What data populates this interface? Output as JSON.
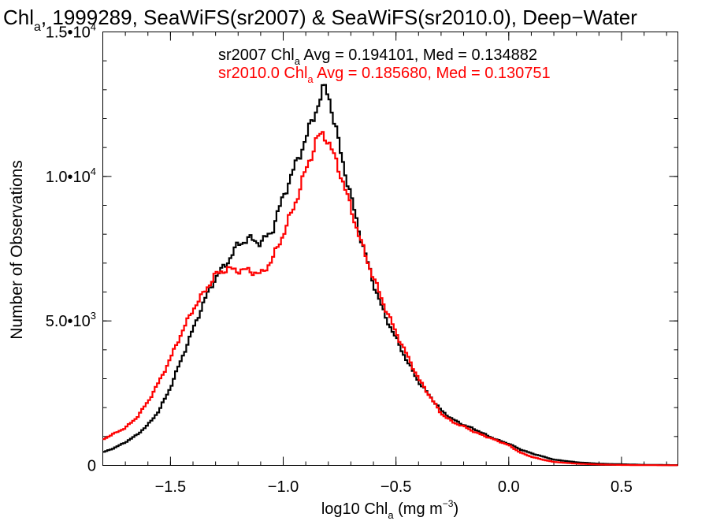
{
  "chart_data": {
    "type": "line",
    "title": {
      "main": "Chl",
      "sub": "a",
      "rest": ", 1999289, SeaWiFS(sr2007) & SeaWiFS(sr2010.0), Deep−Water"
    },
    "xlabel": {
      "main": "log10 Chl",
      "sub": "a",
      "rest": " (mg m",
      "sup": "−3",
      "close": ")"
    },
    "ylabel": "Number of Observations",
    "xlim": [
      -1.8,
      0.75
    ],
    "ylim": [
      0,
      15000
    ],
    "x_ticks": [
      {
        "v": -1.5,
        "label": "−1.5"
      },
      {
        "v": -1.0,
        "label": "−1.0"
      },
      {
        "v": -0.5,
        "label": "−0.5"
      },
      {
        "v": 0.0,
        "label": "0.0"
      },
      {
        "v": 0.5,
        "label": "0.5"
      }
    ],
    "y_ticks": [
      {
        "v": 0,
        "mant": "0",
        "exp": ""
      },
      {
        "v": 5000,
        "mant": "5.0•10",
        "exp": "3"
      },
      {
        "v": 10000,
        "mant": "1.0•10",
        "exp": "4"
      },
      {
        "v": 15000,
        "mant": "1.5•10",
        "exp": "4"
      }
    ],
    "x_minor_step": 0.1,
    "y_minor_step": 1000,
    "legend": [
      {
        "prefix": "sr2007 Chl",
        "sub": "a",
        "stats": " Avg = 0.194101, Med = 0.134882",
        "color": "#000000"
      },
      {
        "prefix": "sr2010.0 Chl",
        "sub": "a",
        "stats": " Avg = 0.185680, Med = 0.130751",
        "color": "#ff0000"
      }
    ],
    "series": [
      {
        "name": "sr2007",
        "color": "#000000",
        "x": [
          -1.8,
          -1.75,
          -1.7,
          -1.65,
          -1.6,
          -1.55,
          -1.5,
          -1.45,
          -1.4,
          -1.35,
          -1.3,
          -1.25,
          -1.2,
          -1.15,
          -1.1,
          -1.05,
          -1.0,
          -0.95,
          -0.9,
          -0.85,
          -0.82,
          -0.8,
          -0.75,
          -0.7,
          -0.65,
          -0.6,
          -0.55,
          -0.5,
          -0.45,
          -0.4,
          -0.35,
          -0.3,
          -0.25,
          -0.2,
          -0.15,
          -0.1,
          -0.05,
          0.0,
          0.05,
          0.1,
          0.15,
          0.2,
          0.3,
          0.4,
          0.5,
          0.6,
          0.75
        ],
        "y": [
          450,
          600,
          800,
          1050,
          1400,
          1900,
          2700,
          3700,
          4700,
          5700,
          6500,
          7000,
          7650,
          7850,
          7700,
          8100,
          9300,
          10300,
          11300,
          12400,
          13050,
          12900,
          11000,
          9300,
          7700,
          6300,
          5200,
          4400,
          3600,
          2900,
          2400,
          1900,
          1600,
          1400,
          1250,
          1050,
          880,
          750,
          560,
          420,
          310,
          200,
          110,
          60,
          40,
          20,
          10
        ]
      },
      {
        "name": "sr2010.0",
        "color": "#ff0000",
        "x": [
          -1.8,
          -1.75,
          -1.7,
          -1.65,
          -1.6,
          -1.55,
          -1.5,
          -1.45,
          -1.4,
          -1.35,
          -1.3,
          -1.25,
          -1.2,
          -1.15,
          -1.1,
          -1.05,
          -1.0,
          -0.95,
          -0.9,
          -0.85,
          -0.82,
          -0.8,
          -0.75,
          -0.7,
          -0.65,
          -0.6,
          -0.55,
          -0.5,
          -0.45,
          -0.4,
          -0.35,
          -0.3,
          -0.25,
          -0.2,
          -0.15,
          -0.1,
          -0.05,
          0.0,
          0.05,
          0.1,
          0.15,
          0.2,
          0.3,
          0.4,
          0.5,
          0.6,
          0.75
        ],
        "y": [
          900,
          1100,
          1300,
          1650,
          2200,
          2900,
          3700,
          4600,
          5400,
          6000,
          6600,
          6800,
          6750,
          6750,
          6600,
          7100,
          8000,
          9000,
          10200,
          11300,
          11500,
          11200,
          10200,
          8900,
          7600,
          6500,
          5500,
          4600,
          3800,
          3000,
          2400,
          1800,
          1500,
          1350,
          1150,
          1000,
          850,
          700,
          450,
          300,
          200,
          120,
          60,
          30,
          15,
          8,
          5
        ]
      }
    ]
  }
}
